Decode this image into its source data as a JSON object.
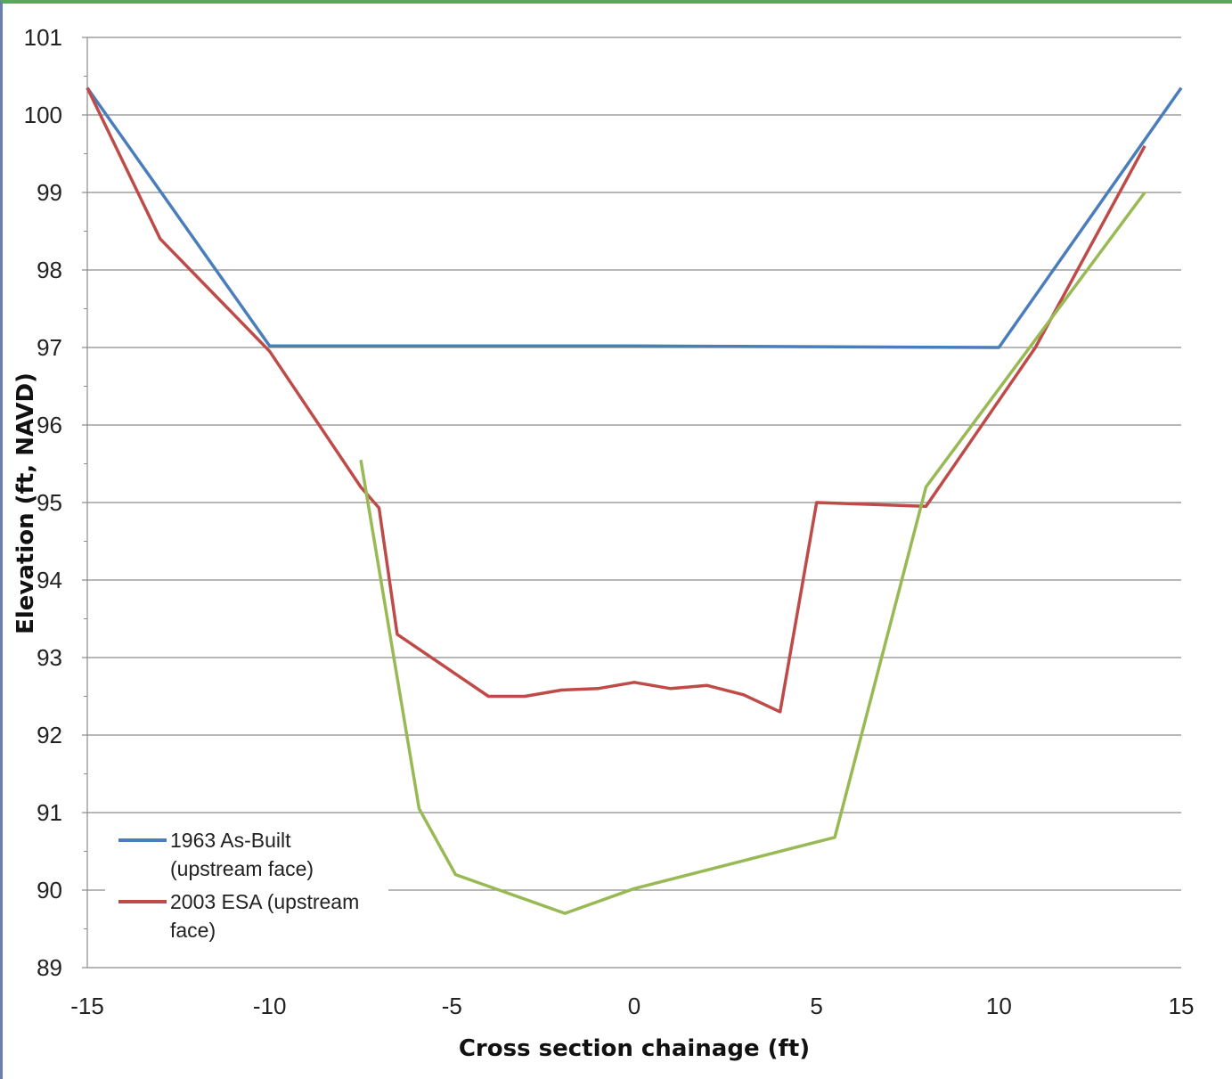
{
  "chart_data": {
    "type": "line",
    "xlabel": "Cross section chainage (ft)",
    "ylabel": "Elevation (ft, NAVD)",
    "xlim": [
      -15,
      15
    ],
    "ylim": [
      89,
      101
    ],
    "x_ticks": [
      "-15",
      "-10",
      "-5",
      "0",
      "5",
      "10",
      "15"
    ],
    "y_ticks": [
      "89",
      "90",
      "91",
      "92",
      "93",
      "94",
      "95",
      "96",
      "97",
      "98",
      "99",
      "100",
      "101"
    ],
    "grid": "horizontal",
    "legend_position": "bottom-left",
    "series": [
      {
        "name": "1963 As-Built (upstream face)",
        "legend_lines": [
          "1963 As-Built",
          "(upstream face)"
        ],
        "color": "#4a7ebb",
        "points": [
          [
            -15,
            100.35
          ],
          [
            -10,
            97.02
          ],
          [
            0,
            97.02
          ],
          [
            10,
            97.0
          ],
          [
            15,
            100.35
          ]
        ]
      },
      {
        "name": "2003 ESA (upstream face)",
        "legend_lines": [
          "2003 ESA (upstream",
          "face)"
        ],
        "color": "#be4b48",
        "points": [
          [
            -15,
            100.35
          ],
          [
            -13,
            98.4
          ],
          [
            -10,
            96.95
          ],
          [
            -7.5,
            95.2
          ],
          [
            -7,
            94.93
          ],
          [
            -6.5,
            93.3
          ],
          [
            -4,
            92.5
          ],
          [
            -3,
            92.5
          ],
          [
            -2,
            92.58
          ],
          [
            -1,
            92.6
          ],
          [
            0,
            92.68
          ],
          [
            1,
            92.6
          ],
          [
            2,
            92.64
          ],
          [
            3,
            92.52
          ],
          [
            4,
            92.3
          ],
          [
            5,
            95.0
          ],
          [
            8,
            94.95
          ],
          [
            11,
            97.0
          ],
          [
            14,
            99.6
          ]
        ]
      },
      {
        "name": "",
        "color": "#98b954",
        "points": [
          [
            -7.5,
            95.55
          ],
          [
            -5.9,
            91.05
          ],
          [
            -4.9,
            90.2
          ],
          [
            -1.9,
            89.7
          ],
          [
            0,
            90.02
          ],
          [
            5.5,
            90.68
          ],
          [
            8,
            95.2
          ],
          [
            14,
            99.0
          ]
        ]
      }
    ]
  }
}
